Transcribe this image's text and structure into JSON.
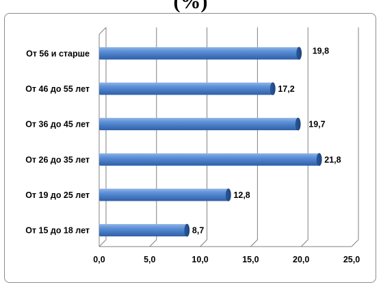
{
  "title_fragment": "(%)",
  "chart_data": {
    "type": "bar",
    "orientation": "horizontal",
    "title": "(%)",
    "categories": [
      "От 56 и старше",
      "От 46 до 55 лет",
      "От 36 до 45 лет",
      "От 26 до 35 лет",
      "От 19 до 25 лет",
      "От 15 до 18 лет"
    ],
    "values": [
      19.8,
      17.2,
      19.7,
      21.8,
      12.8,
      8.7
    ],
    "data_labels": [
      "19,8",
      "17,2",
      "19,7",
      "21,8",
      "12,8",
      "8,7"
    ],
    "xlim": [
      0,
      25
    ],
    "x_ticks": [
      "0,0",
      "5,0",
      "10,0",
      "15,0",
      "20,0",
      "25,0"
    ],
    "grid": "vertical",
    "bar_color": "#4a7fc8",
    "legend": "none"
  }
}
